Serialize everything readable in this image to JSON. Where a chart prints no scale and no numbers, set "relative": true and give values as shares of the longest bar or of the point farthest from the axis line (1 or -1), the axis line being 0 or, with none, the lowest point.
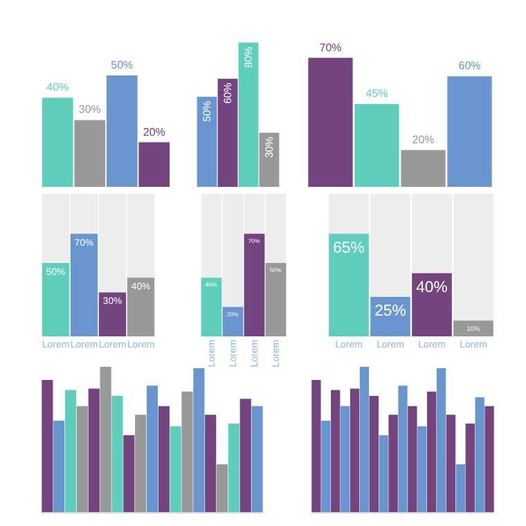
{
  "chart_data": [
    {
      "type": "bar",
      "categories": [
        null,
        null,
        null,
        null
      ],
      "values": [
        40,
        30,
        50,
        20
      ],
      "value_labels": [
        "40%",
        "30%",
        "50%",
        "20%"
      ],
      "colors": [
        "#5fcfbc",
        "#999999",
        "#6a96d0",
        "#74447f"
      ]
    },
    {
      "type": "bar",
      "categories": [
        null,
        null,
        null,
        null
      ],
      "values": [
        50,
        60,
        80,
        30
      ],
      "value_labels": [
        "50%",
        "60%",
        "80%",
        "30%"
      ],
      "colors": [
        "#6a96d0",
        "#74447f",
        "#5fcfbc",
        "#999999"
      ]
    },
    {
      "type": "bar",
      "categories": [
        null,
        null,
        null,
        null
      ],
      "values": [
        70,
        45,
        20,
        60
      ],
      "value_labels": [
        "70%",
        "45%",
        "20%",
        "60%"
      ],
      "colors": [
        "#74447f",
        "#5fcfbc",
        "#999999",
        "#6a96d0"
      ]
    },
    {
      "type": "bar",
      "categories": [
        "Lorem",
        "Lorem",
        "Lorem",
        "Lorem"
      ],
      "values": [
        50,
        70,
        30,
        40
      ],
      "value_labels": [
        "50%",
        "70%",
        "30%",
        "40%"
      ],
      "colors": [
        "#5fcfbc",
        "#6a96d0",
        "#74447f",
        "#999999"
      ]
    },
    {
      "type": "bar",
      "categories": [
        "Lorem",
        "Lorem",
        "Lorem",
        "Lorem"
      ],
      "values": [
        40,
        20,
        70,
        50
      ],
      "value_labels": [
        "40%",
        "20%",
        "70%",
        "50%"
      ],
      "colors": [
        "#5fcfbc",
        "#6a96d0",
        "#74447f",
        "#999999"
      ]
    },
    {
      "type": "bar",
      "categories": [
        "Lorem",
        "Lorem",
        "Lorem",
        "Lorem"
      ],
      "values": [
        65,
        25,
        40,
        10
      ],
      "value_labels": [
        "65%",
        "25%",
        "40%",
        "10%"
      ],
      "colors": [
        "#5fcfbc",
        "#6a96d0",
        "#74447f",
        "#999999"
      ]
    },
    {
      "type": "bar",
      "relative": true,
      "categories": [
        null,
        null,
        null,
        null,
        null,
        null,
        null,
        null,
        null,
        null,
        null,
        null,
        null,
        null,
        null,
        null,
        null,
        null,
        null
      ],
      "values": [
        0.91,
        0.63,
        0.84,
        0.73,
        0.85,
        1.0,
        0.8,
        0.53,
        0.67,
        0.87,
        0.73,
        0.59,
        0.83,
        0.99,
        0.67,
        0.33,
        0.61,
        0.78,
        0.73
      ],
      "colors": [
        "#74447f",
        "#6a96d0",
        "#5fcfbc",
        "#999999",
        "#74447f",
        "#999999",
        "#5fcfbc",
        "#74447f",
        "#999999",
        "#6a96d0",
        "#74447f",
        "#5fcfbc",
        "#999999",
        "#6a96d0",
        "#74447f",
        "#999999",
        "#5fcfbc",
        "#74447f",
        "#6a96d0"
      ]
    },
    {
      "type": "bar",
      "relative": true,
      "categories": [
        null,
        null,
        null,
        null,
        null,
        null,
        null,
        null,
        null,
        null,
        null,
        null,
        null,
        null,
        null,
        null,
        null,
        null,
        null
      ],
      "values": [
        0.91,
        0.63,
        0.84,
        0.73,
        0.85,
        1.0,
        0.8,
        0.53,
        0.67,
        0.87,
        0.73,
        0.59,
        0.83,
        0.99,
        0.67,
        0.33,
        0.61,
        0.79,
        0.73
      ],
      "colors": [
        "#74447f",
        "#6a96d0",
        "#74447f",
        "#6a96d0",
        "#74447f",
        "#6a96d0",
        "#74447f",
        "#6a96d0",
        "#74447f",
        "#6a96d0",
        "#74447f",
        "#6a96d0",
        "#74447f",
        "#6a96d0",
        "#74447f",
        "#6a96d0",
        "#74447f",
        "#6a96d0",
        "#74447f"
      ]
    }
  ]
}
